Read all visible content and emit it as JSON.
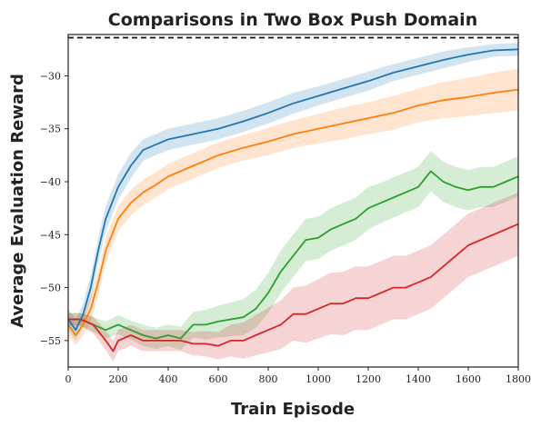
{
  "chart_data": {
    "type": "line",
    "title": "Comparisons in Two Box Push Domain",
    "xlabel": "Train Episode",
    "ylabel": "Average Evaluation Reward",
    "xlim": [
      0,
      1800
    ],
    "ylim": [
      -57.5,
      -26.1
    ],
    "xticks": [
      0,
      200,
      400,
      600,
      800,
      1000,
      1200,
      1400,
      1600,
      1800
    ],
    "yticks": [
      -55,
      -50,
      -45,
      -40,
      -35,
      -30
    ],
    "grid": false,
    "reference_line": {
      "y": -26.4,
      "style": "dashed",
      "color": "#111111"
    },
    "series": [
      {
        "color": "#1f77b4",
        "x": [
          0,
          30,
          60,
          90,
          120,
          150,
          200,
          250,
          300,
          350,
          400,
          500,
          600,
          700,
          800,
          900,
          1000,
          1100,
          1200,
          1300,
          1400,
          1500,
          1600,
          1700,
          1800
        ],
        "values": [
          -53,
          -54,
          -52.5,
          -50,
          -46.5,
          -43.5,
          -40.5,
          -38.5,
          -37,
          -36.5,
          -36,
          -35.5,
          -35,
          -34.3,
          -33.5,
          -32.6,
          -31.9,
          -31.2,
          -30.5,
          -29.7,
          -29.1,
          -28.5,
          -28,
          -27.6,
          -27.5
        ],
        "band": [
          1.0,
          1.0,
          1.0,
          1.2,
          1.2,
          1.2,
          1.2,
          1.2,
          1.0,
          1.0,
          1.0,
          1.0,
          1.0,
          1.0,
          1.0,
          1.0,
          0.9,
          0.9,
          0.9,
          0.8,
          0.8,
          0.8,
          0.7,
          0.6,
          0.6
        ]
      },
      {
        "color": "#ff7f0e",
        "x": [
          0,
          30,
          60,
          90,
          120,
          150,
          200,
          250,
          300,
          350,
          400,
          500,
          600,
          700,
          800,
          900,
          1000,
          1100,
          1200,
          1300,
          1400,
          1500,
          1600,
          1700,
          1800
        ],
        "values": [
          -53.5,
          -54.5,
          -53.5,
          -52,
          -49.5,
          -46.5,
          -43.5,
          -42,
          -41,
          -40.3,
          -39.5,
          -38.5,
          -37.5,
          -36.8,
          -36.2,
          -35.5,
          -35,
          -34.5,
          -34,
          -33.5,
          -32.8,
          -32.3,
          -32,
          -31.6,
          -31.3
        ],
        "band": [
          1.0,
          1.0,
          1.0,
          1.2,
          1.2,
          1.2,
          1.2,
          1.2,
          1.2,
          1.2,
          1.2,
          1.2,
          1.2,
          1.2,
          1.3,
          1.3,
          1.4,
          1.5,
          1.5,
          1.6,
          1.6,
          1.7,
          1.8,
          1.9,
          2.0
        ]
      },
      {
        "color": "#2ca02c",
        "x": [
          0,
          50,
          100,
          150,
          200,
          250,
          300,
          350,
          400,
          450,
          500,
          550,
          600,
          650,
          700,
          750,
          800,
          850,
          900,
          950,
          1000,
          1050,
          1100,
          1150,
          1200,
          1250,
          1300,
          1350,
          1400,
          1450,
          1500,
          1550,
          1600,
          1650,
          1700,
          1750,
          1800
        ],
        "values": [
          -53,
          -53,
          -53.5,
          -54,
          -53.5,
          -54,
          -54.5,
          -54.8,
          -54.5,
          -54.8,
          -53.5,
          -53.5,
          -53.2,
          -53,
          -52.8,
          -52,
          -50.5,
          -48.5,
          -47,
          -45.5,
          -45.3,
          -44.5,
          -44,
          -43.5,
          -42.5,
          -42,
          -41.5,
          -41,
          -40.5,
          -39,
          -40,
          -40.5,
          -40.8,
          -40.5,
          -40.5,
          -40,
          -39.5
        ],
        "band": [
          0.6,
          0.6,
          0.7,
          0.8,
          0.9,
          0.9,
          1.0,
          1.0,
          1.0,
          1.1,
          1.2,
          1.4,
          1.5,
          1.6,
          1.7,
          1.8,
          1.9,
          2.0,
          2.0,
          2.0,
          2.0,
          2.0,
          2.0,
          2.0,
          2.0,
          1.9,
          1.9,
          1.9,
          1.9,
          1.9,
          1.9,
          1.9,
          1.9,
          1.9,
          1.9,
          1.9,
          1.9
        ]
      },
      {
        "color": "#d62728",
        "x": [
          0,
          50,
          100,
          150,
          180,
          200,
          250,
          300,
          350,
          400,
          450,
          500,
          550,
          600,
          650,
          700,
          750,
          800,
          850,
          900,
          950,
          1000,
          1050,
          1100,
          1150,
          1200,
          1250,
          1300,
          1350,
          1400,
          1450,
          1500,
          1550,
          1600,
          1650,
          1700,
          1750,
          1800
        ],
        "values": [
          -53,
          -53,
          -53.5,
          -55,
          -56,
          -55,
          -54.5,
          -55,
          -55,
          -55,
          -55,
          -55.3,
          -55.3,
          -55.5,
          -55,
          -55,
          -54.5,
          -54,
          -53.5,
          -52.5,
          -52.5,
          -52,
          -51.5,
          -51.5,
          -51,
          -51,
          -50.5,
          -50,
          -50,
          -49.5,
          -49,
          -48,
          -47,
          -46,
          -45.5,
          -45,
          -44.5,
          -44
        ],
        "band": [
          0.6,
          0.6,
          0.8,
          0.9,
          1.0,
          1.0,
          1.0,
          1.0,
          1.0,
          1.0,
          1.0,
          1.1,
          1.2,
          1.3,
          1.5,
          1.7,
          1.9,
          2.1,
          2.3,
          2.5,
          2.7,
          2.8,
          2.9,
          3.0,
          3.0,
          3.0,
          3.0,
          3.0,
          3.0,
          3.0,
          3.0,
          3.0,
          3.0,
          3.0,
          3.0,
          3.0,
          3.0,
          3.0
        ]
      }
    ]
  }
}
